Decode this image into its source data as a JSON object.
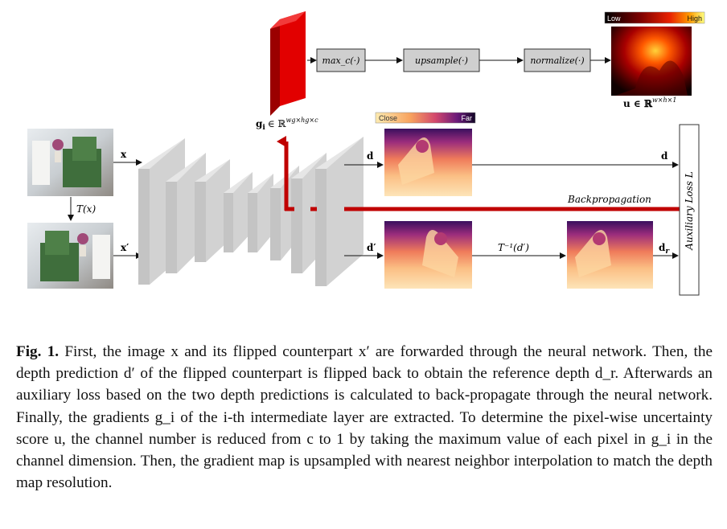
{
  "figure": {
    "ops": [
      "max_c(·)",
      "upsample(·)",
      "normalize(·)"
    ],
    "grad_label": "g_i ∈ ℝ^{w_g×h_g×c}",
    "grad_label_main": "g",
    "grad_label_sub": "i",
    "grad_label_rest": "∈ ℝ",
    "grad_label_sup": "wg×hg×c",
    "u_label_main": "u ∈ ℝ",
    "u_label_sup": "w×h×1",
    "heat_low": "Low",
    "heat_high": "High",
    "depth_close": "Close",
    "depth_far": "Far",
    "x_label": "x",
    "x_flip_label": "x′",
    "transform_label": "T(x)",
    "d_label": "d",
    "d_flip_label": "d′",
    "d_out_label": "d",
    "dr_label": "d",
    "dr_sub": "r",
    "inverse_label": "T⁻¹(d′)",
    "backprop_label": "Backpropagation",
    "loss_label": "Auxiliary Loss L",
    "colors": {
      "red": "#c00000",
      "layer_front": "#c8c8c8",
      "layer_side": "#e4e4e4",
      "op_box": "#cfcfcf"
    }
  },
  "caption": {
    "label": "Fig. 1.",
    "text": "First, the image x and its flipped counterpart x′ are forwarded through the neural network. Then, the depth prediction d′ of the flipped counterpart is flipped back to obtain the reference depth d_r. Afterwards an auxiliary loss based on the two depth predictions is calculated to back-propagate through the neural network. Finally, the gradients g_i of the i-th intermediate layer are extracted. To determine the pixel-wise uncertainty score u, the channel number is reduced from c to 1 by taking the maximum value of each pixel in g_i in the channel dimension. Then, the gradient map is upsampled with nearest neighbor interpolation to match the depth map resolution."
  }
}
